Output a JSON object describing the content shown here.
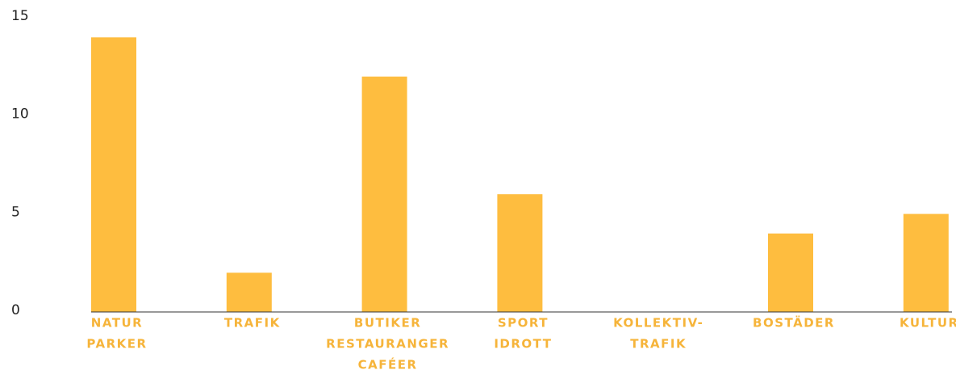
{
  "chart_data": {
    "type": "bar",
    "categories": [
      [
        "NATUR",
        "PARKER"
      ],
      [
        "TRAFIK"
      ],
      [
        "BUTIKER",
        "RESTAURANGER",
        "CAFÉER"
      ],
      [
        "SPORT",
        "IDROTT"
      ],
      [
        "KOLLEKTIV-",
        "TRAFIK"
      ],
      [
        "BOSTÄDER"
      ],
      [
        "KULTUR"
      ]
    ],
    "values": [
      14,
      2,
      12,
      6,
      0,
      4,
      5
    ],
    "color": "#febd3f",
    "ylim": [
      0,
      15
    ],
    "yticks": [
      0,
      5,
      10,
      15
    ]
  }
}
